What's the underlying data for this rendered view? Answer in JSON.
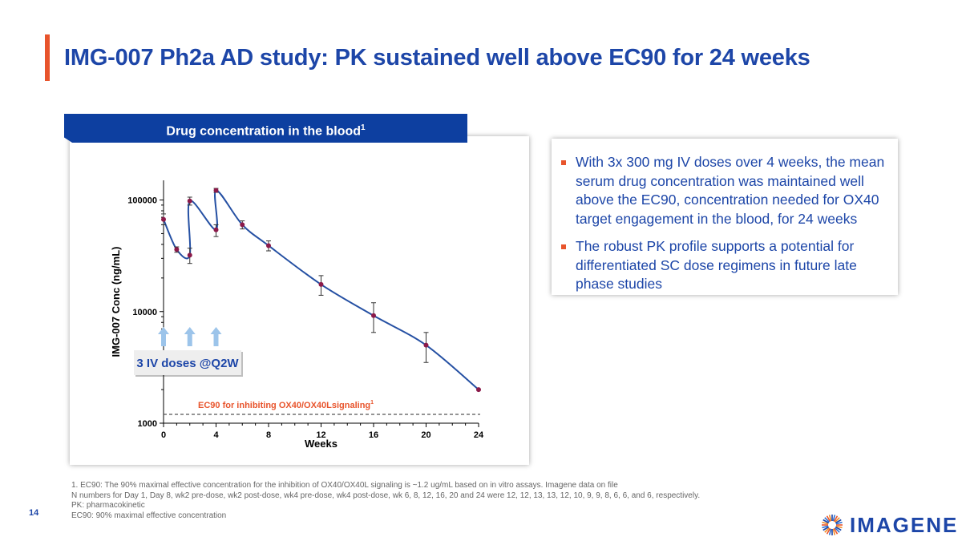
{
  "slide": {
    "title": "IMG-007 Ph2a AD study: PK sustained well above EC90 for 24 weeks",
    "page_number": "14"
  },
  "chart_header": {
    "label": "Drug concentration in the blood",
    "superscript": "1"
  },
  "chart_data": {
    "type": "line",
    "title": "Drug concentration in the blood",
    "xlabel": "Weeks",
    "ylabel": "IMG-007 Conc (ng/mL)",
    "yscale": "log",
    "xlim": [
      0,
      24
    ],
    "ylim": [
      1000,
      150000
    ],
    "x_ticks": [
      0,
      4,
      8,
      12,
      16,
      20,
      24
    ],
    "x_tick_labels": [
      "0",
      "4",
      "8",
      "12",
      "16",
      "20",
      "24"
    ],
    "y_ticks": [
      1000,
      10000,
      100000
    ],
    "y_tick_labels": [
      "1000",
      "10000",
      "100000"
    ],
    "series": [
      {
        "name": "IMG-007 mean serum concentration",
        "color": "#2550a3",
        "marker_color": "#8b1a4a",
        "points": [
          {
            "x": 0,
            "y": 67000,
            "lo": 60000,
            "hi": 75000
          },
          {
            "x": 1,
            "y": 36000,
            "lo": 34000,
            "hi": 38000
          },
          {
            "x": 2,
            "y": 32000,
            "lo": 27000,
            "hi": 37000
          },
          {
            "x": 2,
            "y": 98000,
            "lo": 90000,
            "hi": 106000
          },
          {
            "x": 4,
            "y": 54000,
            "lo": 47000,
            "hi": 60000
          },
          {
            "x": 4,
            "y": 122000,
            "lo": 117000,
            "hi": 127000
          },
          {
            "x": 6,
            "y": 60000,
            "lo": 55000,
            "hi": 65000
          },
          {
            "x": 8,
            "y": 39000,
            "lo": 35000,
            "hi": 43000
          },
          {
            "x": 12,
            "y": 17500,
            "lo": 14000,
            "hi": 21000
          },
          {
            "x": 16,
            "y": 9200,
            "lo": 6500,
            "hi": 12000
          },
          {
            "x": 20,
            "y": 5000,
            "lo": 3500,
            "hi": 6500
          },
          {
            "x": 24,
            "y": 2000,
            "lo": 2000,
            "hi": 2000
          }
        ]
      }
    ],
    "ec90": {
      "value": 1200,
      "label": "EC90 for inhibiting OX40/OX40Lsignaling",
      "superscript": "1"
    },
    "dose_arrows_weeks": [
      0,
      2,
      4
    ],
    "dose_label": "3 IV doses @Q2W"
  },
  "bullets": [
    "With 3x 300 mg IV doses over 4 weeks, the mean serum drug concentration was maintained well above the EC90, concentration needed for OX40 target engagement in the blood, for 24 weeks",
    "The robust PK profile supports a potential for differentiated SC dose regimens in future late phase studies"
  ],
  "footnotes": [
    "1. EC90: The 90% maximal effective concentration for the inhibition of OX40/OX40L signaling is ~1.2 ug/mL based on in vitro assays. Imagene data on file",
    "N numbers for Day 1, Day 8, wk2 pre-dose, wk2 post-dose, wk4 pre-dose, wk4 post-dose, wk 6, 8, 12, 16, 20 and 24 were 12, 12, 13, 13, 12, 10, 9, 9, 8, 6, 6, and 6, respectively.",
    "PK: pharmacokinetic",
    "EC90: 90% maximal effective concentration"
  ],
  "logo": {
    "text": "IMAGENE"
  },
  "colors": {
    "brand_blue": "#1d46a8",
    "header_blue": "#0d3fa0",
    "accent_orange": "#e8542c",
    "arrow_blue": "#9cc4ea"
  }
}
